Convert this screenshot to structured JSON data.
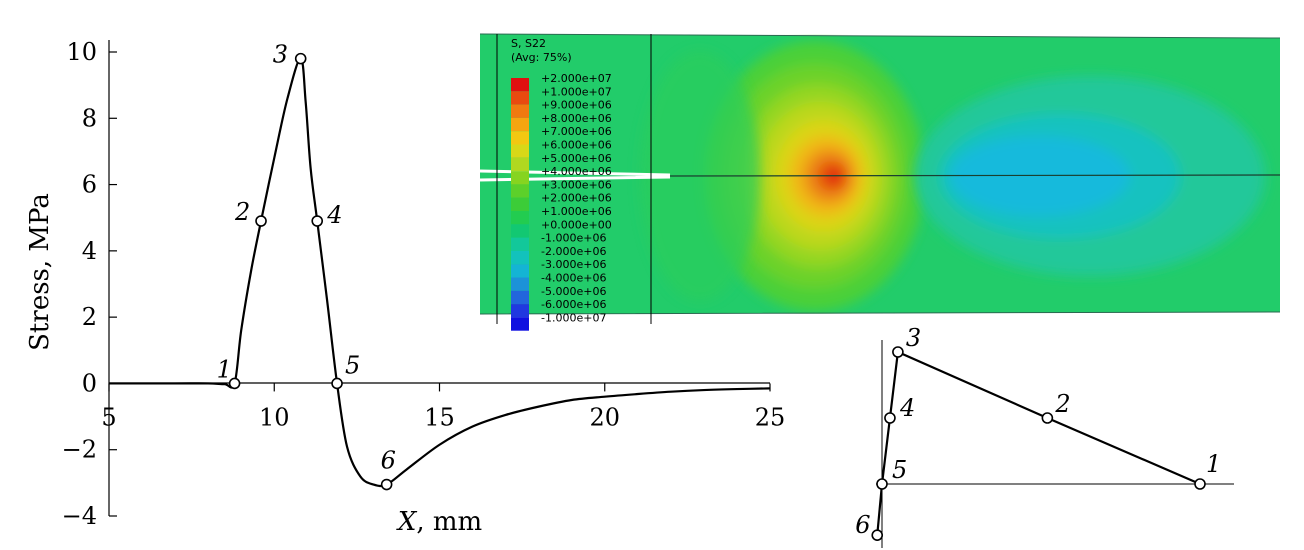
{
  "chart_data": [
    {
      "type": "line",
      "xlabel_var": "X",
      "xlabel_unit": ", mm",
      "ylabel": "Stress, MPa",
      "xlim": [
        5,
        25
      ],
      "ylim": [
        -4,
        10
      ],
      "xticks": [
        "5",
        "10",
        "15",
        "20",
        "25"
      ],
      "yticks": [
        "10",
        "8",
        "6",
        "4",
        "2",
        "0",
        "−2",
        "−4"
      ],
      "grid": false,
      "curve_x": [
        5,
        7,
        8,
        8.5,
        8.8,
        9.0,
        9.3,
        9.6,
        10.0,
        10.4,
        10.8,
        10.95,
        11.1,
        11.3,
        11.6,
        11.9,
        12.2,
        12.6,
        13.0,
        13.4,
        14.0,
        15.0,
        16.0,
        17.0,
        18.0,
        19.0,
        20.0,
        21.0,
        22.0,
        23.0,
        24.0,
        25.0
      ],
      "curve_y": [
        0,
        0,
        0,
        -0.02,
        0,
        1.6,
        3.4,
        4.9,
        6.8,
        8.6,
        9.8,
        8.5,
        6.5,
        4.9,
        2.5,
        0,
        -1.9,
        -2.8,
        -3.05,
        -3.05,
        -2.6,
        -1.85,
        -1.3,
        -0.95,
        -0.7,
        -0.5,
        -0.4,
        -0.32,
        -0.25,
        -0.2,
        -0.17,
        -0.15
      ],
      "points": [
        {
          "label": "1",
          "x": 8.8,
          "y": 0
        },
        {
          "label": "2",
          "x": 9.6,
          "y": 4.9
        },
        {
          "label": "3",
          "x": 10.8,
          "y": 9.8
        },
        {
          "label": "4",
          "x": 11.3,
          "y": 4.9
        },
        {
          "label": "5",
          "x": 11.9,
          "y": 0
        },
        {
          "label": "6",
          "x": 13.4,
          "y": -3.05
        }
      ]
    },
    {
      "type": "line",
      "description_free": true,
      "points": [
        {
          "label": "1",
          "x": 1.0,
          "y": 0
        },
        {
          "label": "2",
          "x": 0.52,
          "y": 0.49
        },
        {
          "label": "3",
          "x": 0.05,
          "y": 0.98
        },
        {
          "label": "4",
          "x": 0.025,
          "y": 0.49
        },
        {
          "label": "5",
          "x": 0,
          "y": 0
        },
        {
          "label": "6",
          "x": -0.015,
          "y": -0.38
        }
      ]
    }
  ],
  "contour": {
    "title_line1": "S, S22",
    "title_line2": "(Avg: 75%)",
    "legend_values": [
      "+2.000e+07",
      "+1.000e+07",
      "+9.000e+06",
      "+8.000e+06",
      "+7.000e+06",
      "+6.000e+06",
      "+5.000e+06",
      "+4.000e+06",
      "+3.000e+06",
      "+2.000e+06",
      "+1.000e+06",
      "+0.000e+00",
      "-1.000e+06",
      "-2.000e+06",
      "-3.000e+06",
      "-4.000e+06",
      "-5.000e+06",
      "-6.000e+06",
      "-1.000e+07"
    ],
    "legend_colors": [
      "#e01010",
      "#e84a10",
      "#f07a10",
      "#f5a510",
      "#f2c812",
      "#d8d818",
      "#b0d820",
      "#86d420",
      "#5cd02a",
      "#3ccc38",
      "#22cc50",
      "#12c872",
      "#12c89a",
      "#12c2bc",
      "#14b4d4",
      "#1c92d8",
      "#2266dc",
      "#2038e0",
      "#1010e0"
    ],
    "background_color": "#22cc6a"
  }
}
